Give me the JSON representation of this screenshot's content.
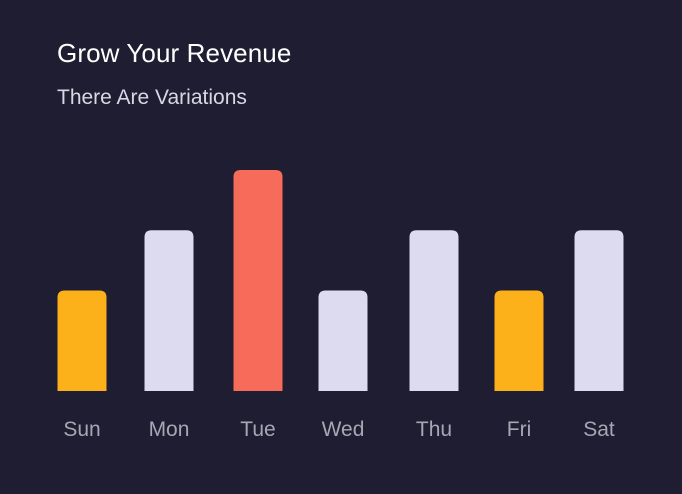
{
  "chart_data": {
    "type": "bar",
    "title": "Grow Your Revenue",
    "subtitle": "There Are Variations",
    "categories": [
      "Sun",
      "Mon",
      "Tue",
      "Wed",
      "Thu",
      "Fri",
      "Sat"
    ],
    "values": [
      5,
      8,
      11,
      5,
      8,
      5,
      8
    ],
    "colors": [
      "#fcb019",
      "#dddbef",
      "#f66b59",
      "#dddbef",
      "#dddbef",
      "#fcb019",
      "#dddbef"
    ],
    "ylim": [
      0,
      11
    ],
    "xlabel": "",
    "ylabel": "",
    "grid": false
  }
}
